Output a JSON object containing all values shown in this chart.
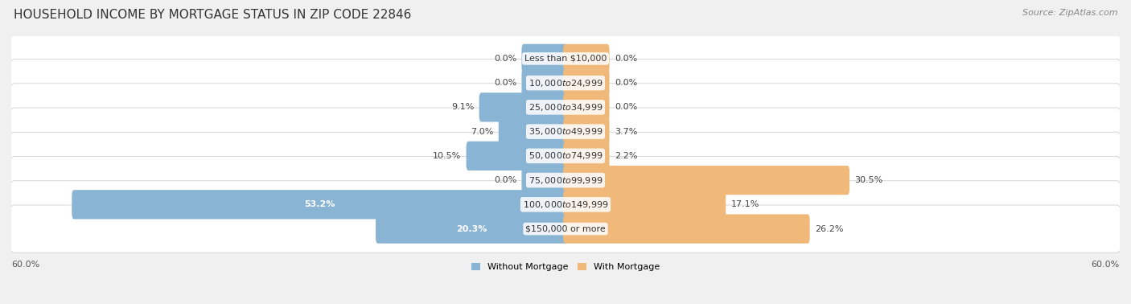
{
  "title": "HOUSEHOLD INCOME BY MORTGAGE STATUS IN ZIP CODE 22846",
  "source": "Source: ZipAtlas.com",
  "categories": [
    "Less than $10,000",
    "$10,000 to $24,999",
    "$25,000 to $34,999",
    "$35,000 to $49,999",
    "$50,000 to $74,999",
    "$75,000 to $99,999",
    "$100,000 to $149,999",
    "$150,000 or more"
  ],
  "without_mortgage": [
    0.0,
    0.0,
    9.1,
    7.0,
    10.5,
    0.0,
    53.2,
    20.3
  ],
  "with_mortgage": [
    0.0,
    0.0,
    0.0,
    3.7,
    2.2,
    30.5,
    17.1,
    26.2
  ],
  "color_without": "#8ab4d4",
  "color_with": "#f0b97a",
  "axis_limit": 60.0,
  "axis_label_left": "60.0%",
  "axis_label_right": "60.0%",
  "legend_without": "Without Mortgage",
  "legend_with": "With Mortgage",
  "bg_color": "#f0f0f0",
  "row_bg_color": "#ffffff",
  "title_fontsize": 11,
  "source_fontsize": 8,
  "label_fontsize": 8,
  "category_fontsize": 8,
  "min_bar_width": 4.5
}
